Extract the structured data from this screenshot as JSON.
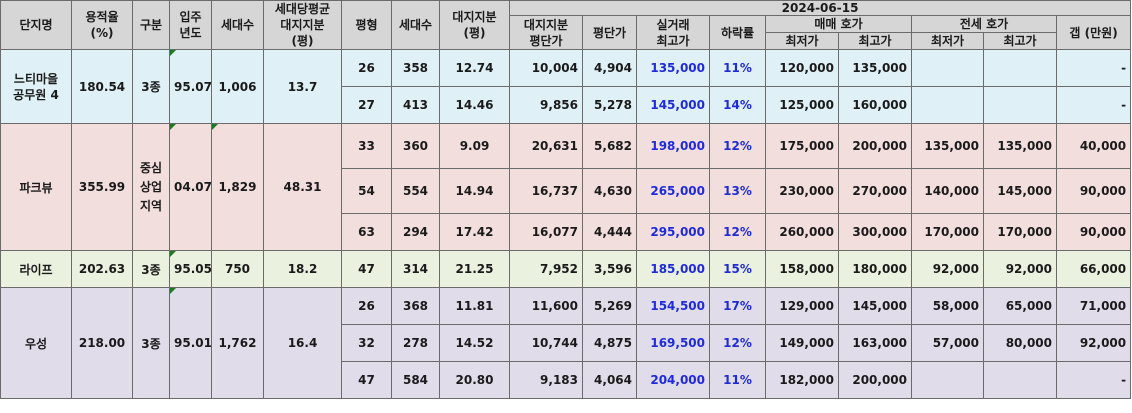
{
  "headers": {
    "complex": "단지명",
    "far": "용적율\n(%)",
    "zone": "구분",
    "year": "입주\n년도",
    "households": "세대수",
    "avg_land_share": "세대당평균\n대지지분\n(평)",
    "pyeong": "평형",
    "unit_households": "세대수",
    "land_share": "대지지분\n(평)",
    "date": "2024-06-15",
    "land_price": "대지지분\n평단가",
    "unit_price": "평단가",
    "high_trade": "실거래\n최고가",
    "drop_rate": "하락률",
    "sale_ask": "매매 호가",
    "jeonse_ask": "전세 호가",
    "min": "최저가",
    "max": "최고가",
    "gap": "갭 (만원)"
  },
  "groups": [
    {
      "name": "느티마을\n공무원 4",
      "far": "180.54",
      "zone": "3종",
      "year": "95.07",
      "households": "1,006",
      "avg_land_share": "13.7",
      "rows": [
        {
          "pyeong": "26",
          "households": "358",
          "land_share": "12.74",
          "land_price": "10,004",
          "unit_price": "4,904",
          "high": "135,000",
          "drop": "11%",
          "sale_min": "120,000",
          "sale_max": "135,000",
          "jeonse_min": "",
          "jeonse_max": "",
          "gap": "-"
        },
        {
          "pyeong": "27",
          "households": "413",
          "land_share": "14.46",
          "land_price": "9,856",
          "unit_price": "5,278",
          "high": "145,000",
          "drop": "14%",
          "sale_min": "125,000",
          "sale_max": "160,000",
          "jeonse_min": "",
          "jeonse_max": "",
          "gap": "-"
        }
      ]
    },
    {
      "name": "파크뷰",
      "far": "355.99",
      "zone": "중심\n상업\n지역",
      "year": "04.07",
      "households": "1,829",
      "avg_land_share": "48.31",
      "rows": [
        {
          "pyeong": "33",
          "households": "360",
          "land_share": "9.09",
          "land_price": "20,631",
          "unit_price": "5,682",
          "high": "198,000",
          "drop": "12%",
          "sale_min": "175,000",
          "sale_max": "200,000",
          "jeonse_min": "135,000",
          "jeonse_max": "135,000",
          "gap": "40,000"
        },
        {
          "pyeong": "54",
          "households": "554",
          "land_share": "14.94",
          "land_price": "16,737",
          "unit_price": "4,630",
          "high": "265,000",
          "drop": "13%",
          "sale_min": "230,000",
          "sale_max": "270,000",
          "jeonse_min": "140,000",
          "jeonse_max": "145,000",
          "gap": "90,000"
        },
        {
          "pyeong": "63",
          "households": "294",
          "land_share": "17.42",
          "land_price": "16,077",
          "unit_price": "4,444",
          "high": "295,000",
          "drop": "12%",
          "sale_min": "260,000",
          "sale_max": "300,000",
          "jeonse_min": "170,000",
          "jeonse_max": "170,000",
          "gap": "90,000"
        }
      ]
    },
    {
      "name": "라이프",
      "far": "202.63",
      "zone": "3종",
      "year": "95.05",
      "households": "750",
      "avg_land_share": "18.2",
      "rows": [
        {
          "pyeong": "47",
          "households": "314",
          "land_share": "21.25",
          "land_price": "7,952",
          "unit_price": "3,596",
          "high": "185,000",
          "drop": "15%",
          "sale_min": "158,000",
          "sale_max": "180,000",
          "jeonse_min": "92,000",
          "jeonse_max": "92,000",
          "gap": "66,000"
        }
      ]
    },
    {
      "name": "우성",
      "far": "218.00",
      "zone": "3종",
      "year": "95.01",
      "households": "1,762",
      "avg_land_share": "16.4",
      "rows": [
        {
          "pyeong": "26",
          "households": "368",
          "land_share": "11.81",
          "land_price": "11,600",
          "unit_price": "5,269",
          "high": "154,500",
          "drop": "17%",
          "sale_min": "129,000",
          "sale_max": "145,000",
          "jeonse_min": "58,000",
          "jeonse_max": "65,000",
          "gap": "71,000"
        },
        {
          "pyeong": "32",
          "households": "278",
          "land_share": "14.52",
          "land_price": "10,744",
          "unit_price": "4,875",
          "high": "169,500",
          "drop": "12%",
          "sale_min": "149,000",
          "sale_max": "163,000",
          "jeonse_min": "57,000",
          "jeonse_max": "80,000",
          "gap": "92,000"
        },
        {
          "pyeong": "47",
          "households": "584",
          "land_share": "20.80",
          "land_price": "9,183",
          "unit_price": "4,064",
          "high": "204,000",
          "drop": "11%",
          "sale_min": "182,000",
          "sale_max": "200,000",
          "jeonse_min": "",
          "jeonse_max": "",
          "gap": "-"
        }
      ]
    }
  ]
}
